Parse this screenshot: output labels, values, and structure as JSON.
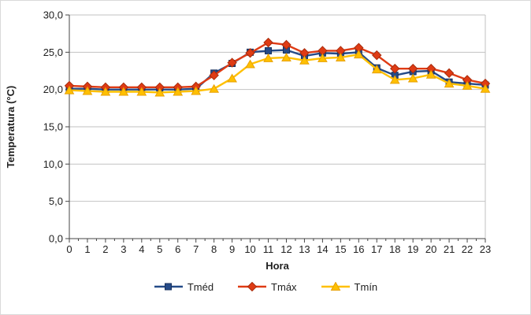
{
  "chart_data": {
    "type": "line",
    "title": "",
    "xlabel": "Hora",
    "ylabel": "Temperatura (°C)",
    "x": [
      0,
      1,
      2,
      3,
      4,
      5,
      6,
      7,
      8,
      9,
      10,
      11,
      12,
      13,
      14,
      15,
      16,
      17,
      18,
      19,
      20,
      21,
      22,
      23
    ],
    "x_tick_labels": [
      "0",
      "1",
      "2",
      "3",
      "4",
      "5",
      "6",
      "7",
      "8",
      "9",
      "10",
      "11",
      "12",
      "13",
      "14",
      "15",
      "16",
      "17",
      "18",
      "19",
      "20",
      "21",
      "22",
      "23"
    ],
    "y_ticks": [
      0,
      5,
      10,
      15,
      20,
      25,
      30
    ],
    "y_tick_labels": [
      "0,0",
      "5,0",
      "10,0",
      "15,0",
      "20,0",
      "25,0",
      "30,0"
    ],
    "ylim": [
      0,
      30
    ],
    "grid": "horizontal",
    "legend_position": "bottom",
    "series": [
      {
        "name": "Tméd",
        "marker": "square",
        "color": "#254b88",
        "edge": "#17305c",
        "values": [
          20.1,
          20.1,
          20.0,
          20.0,
          20.0,
          20.0,
          20.0,
          20.1,
          22.2,
          23.5,
          25.0,
          25.2,
          25.3,
          24.5,
          24.9,
          24.8,
          25.0,
          22.9,
          21.9,
          22.4,
          22.5,
          21.0,
          20.8,
          20.6
        ]
      },
      {
        "name": "Tmáx",
        "marker": "diamond",
        "color": "#df3b14",
        "edge": "#a82c0c",
        "values": [
          20.5,
          20.4,
          20.3,
          20.3,
          20.3,
          20.3,
          20.3,
          20.4,
          21.9,
          23.6,
          24.9,
          26.3,
          26.0,
          24.9,
          25.2,
          25.2,
          25.6,
          24.6,
          22.8,
          22.8,
          22.8,
          22.2,
          21.3,
          20.8
        ]
      },
      {
        "name": "Tmín",
        "marker": "triangle",
        "color": "#ffc000",
        "edge": "#e8a000",
        "values": [
          19.9,
          19.8,
          19.7,
          19.7,
          19.7,
          19.6,
          19.7,
          19.8,
          20.1,
          21.5,
          23.4,
          24.2,
          24.3,
          23.9,
          24.2,
          24.3,
          24.7,
          22.7,
          21.3,
          21.5,
          22.0,
          20.8,
          20.5,
          20.1
        ]
      }
    ],
    "style": {
      "grid_color": "#c2c2c2",
      "axis_color": "#454545",
      "background": "#ffffff"
    }
  }
}
